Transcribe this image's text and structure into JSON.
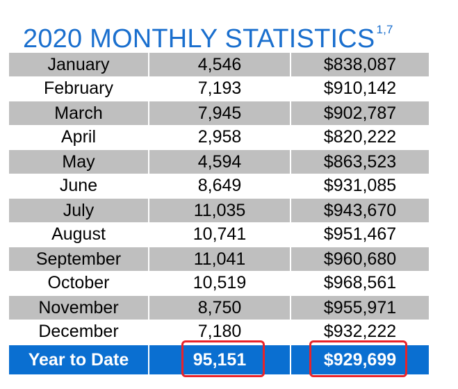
{
  "title": {
    "text": "2020 MONTHLY STATISTICS",
    "superscript": "1,7",
    "color": "#1a6fce"
  },
  "rows": [
    {
      "month": "January",
      "count": "4,546",
      "amount": "$838,087"
    },
    {
      "month": "February",
      "count": "7,193",
      "amount": "$910,142"
    },
    {
      "month": "March",
      "count": "7,945",
      "amount": "$902,787"
    },
    {
      "month": "April",
      "count": "2,958",
      "amount": "$820,222"
    },
    {
      "month": "May",
      "count": "4,594",
      "amount": "$863,523"
    },
    {
      "month": "June",
      "count": "8,649",
      "amount": "$931,085"
    },
    {
      "month": "July",
      "count": "11,035",
      "amount": "$943,670"
    },
    {
      "month": "August",
      "count": "10,741",
      "amount": "$951,467"
    },
    {
      "month": "September",
      "count": "11,041",
      "amount": "$960,680"
    },
    {
      "month": "October",
      "count": "10,519",
      "amount": "$968,561"
    },
    {
      "month": "November",
      "count": "8,750",
      "amount": "$955,971"
    },
    {
      "month": "December",
      "count": "7,180",
      "amount": "$932,222"
    }
  ],
  "total": {
    "label": "Year to Date",
    "count": "95,151",
    "amount": "$929,699"
  },
  "colors": {
    "title": "#1a6fce",
    "shaded_row": "#bfbfbf",
    "total_row": "#0a6fd1",
    "highlight": "#e8232a"
  }
}
